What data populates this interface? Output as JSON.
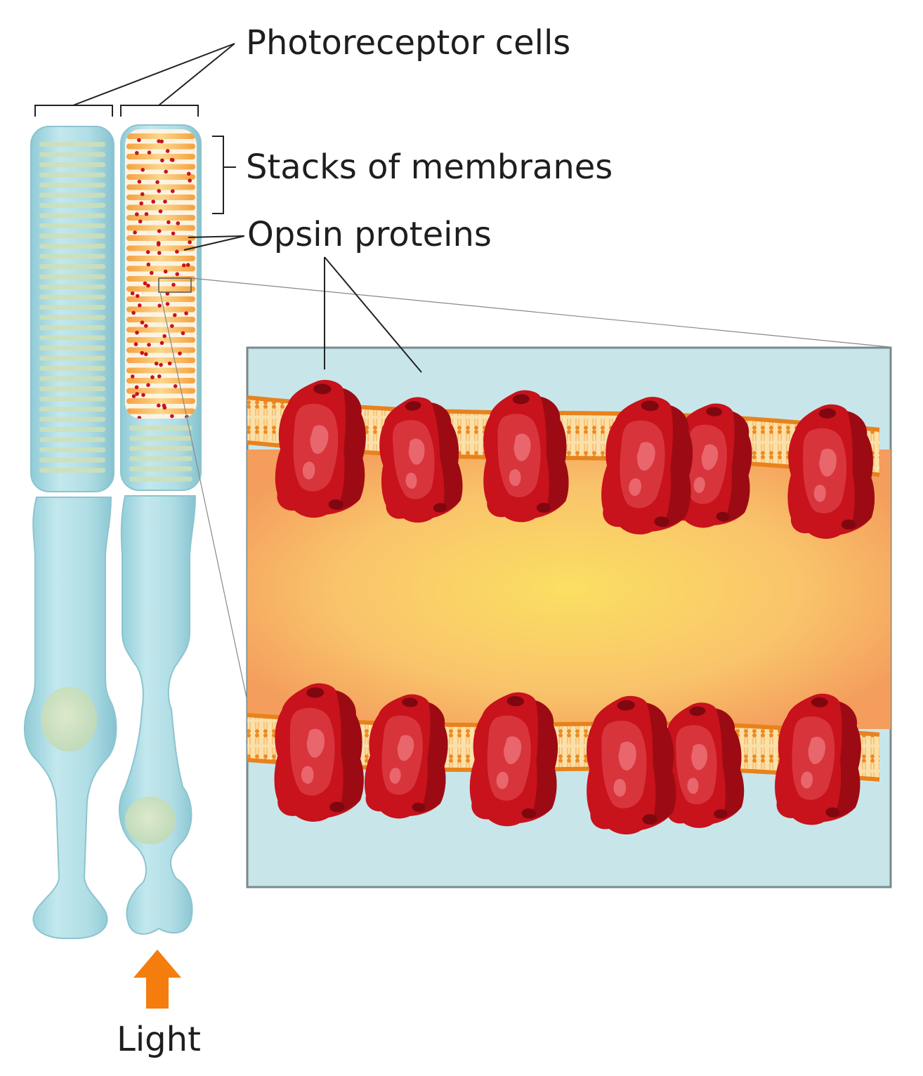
{
  "labels": {
    "photoreceptor_cells": "Photoreceptor cells",
    "stacks_of_membranes": "Stacks of membranes",
    "opsin_proteins": "Opsin proteins",
    "light": "Light"
  },
  "colors": {
    "cell_fill": "#a9d9e2",
    "cell_outline": "#8cc4cf",
    "membrane_orange": "#f08c2a",
    "membrane_yellow": "#f9d66a",
    "opsin_red": "#c8121c",
    "opsin_dark": "#8f0a12",
    "opsin_light": "#e0444c",
    "inset_bg": "#c8e6ea",
    "light_arrow": "#f47d0e",
    "leader_line": "#222222"
  },
  "icons": {
    "light_arrow": "up-arrow-icon"
  }
}
